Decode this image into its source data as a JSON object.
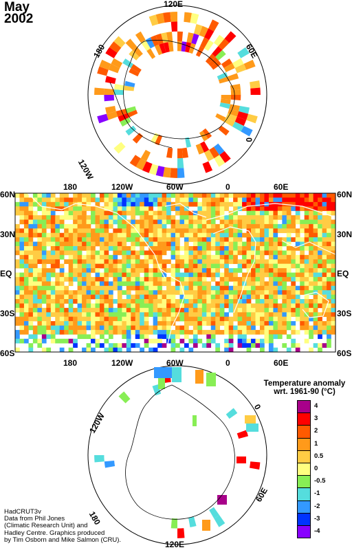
{
  "header": {
    "month": "May",
    "year": "2002"
  },
  "north_polar": {
    "labels": [
      "120E",
      "60E",
      "0",
      "120W",
      "180"
    ]
  },
  "map": {
    "lon_labels": [
      "180",
      "120W",
      "60W",
      "0",
      "60E"
    ],
    "lat_labels": [
      "60N",
      "30N",
      "EQ",
      "30S",
      "60S"
    ]
  },
  "south_polar": {
    "labels": [
      "120W",
      "0",
      "60E",
      "180",
      "120E"
    ]
  },
  "legend": {
    "title_line1": "Temperature anomaly",
    "title_line2": "wrt. 1961-90  (°C)",
    "bins": [
      {
        "label": "4",
        "color": "#a8008a"
      },
      {
        "label": "3",
        "color": "#ff0000"
      },
      {
        "label": "2",
        "color": "#ff5a00"
      },
      {
        "label": "1",
        "color": "#ff9a1a"
      },
      {
        "label": "0.5",
        "color": "#ffcc44"
      },
      {
        "label": "0",
        "color": "#ffff80"
      },
      {
        "label": "-0.5",
        "color": "#88ee55"
      },
      {
        "label": "-1",
        "color": "#55dddd"
      },
      {
        "label": "-2",
        "color": "#3399ff"
      },
      {
        "label": "-3",
        "color": "#0033ff"
      },
      {
        "label": "-4",
        "color": "#8800ff"
      }
    ]
  },
  "credits": [
    "HadCRUT3v",
    "Data from Phil Jones",
    "(Climatic Research Unit) and",
    "Hadley Centre.  Graphics produced",
    "by Tim Osborn and Mike Salmon (CRU)."
  ]
}
